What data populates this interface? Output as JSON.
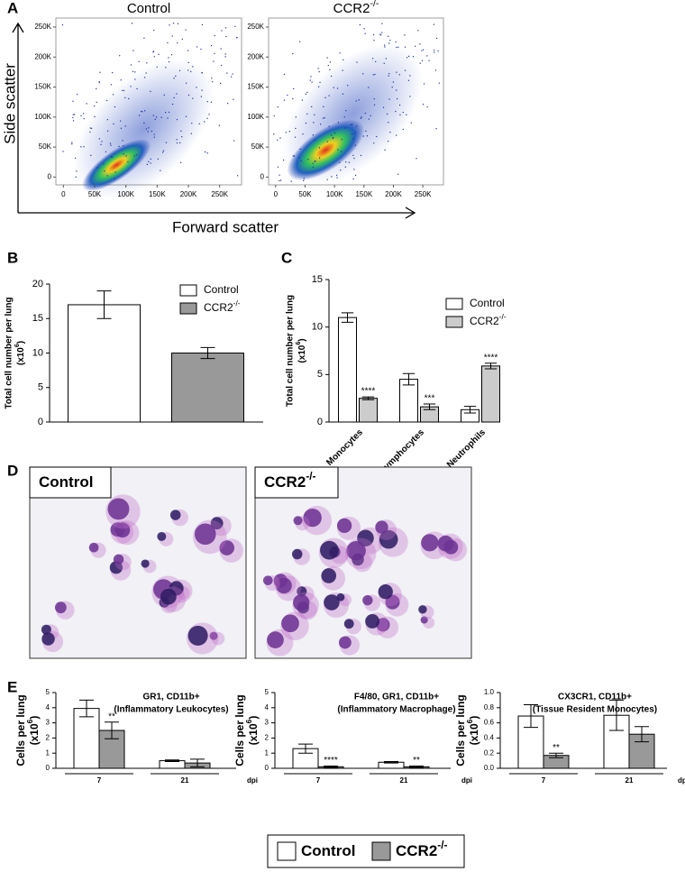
{
  "panel_labels": [
    "A",
    "B",
    "C",
    "D",
    "E"
  ],
  "figure": {
    "y_axis_label": "Side scatter",
    "x_axis_label": "Forward scatter",
    "micrographs": [
      {
        "label": "Control"
      },
      {
        "label": "CCR2",
        "label_sup": "-/-"
      }
    ],
    "legend": [
      {
        "name": "Control"
      },
      {
        "name": "CCR2",
        "sup": "-/-"
      }
    ]
  },
  "chart_data": [
    {
      "type": "density",
      "title": "Control",
      "xlim": [
        -12000,
        285000
      ],
      "ylim": [
        -13000,
        265000
      ],
      "xticks": [
        0,
        {
          "value": 50000,
          "label": "50K"
        },
        {
          "value": 100000,
          "label": "100K"
        },
        {
          "value": 150000,
          "label": "150K"
        },
        {
          "value": 200000,
          "label": "200K"
        },
        {
          "value": 250000,
          "label": "250K"
        }
      ],
      "yticks": [
        0,
        {
          "value": 50000,
          "label": "50K"
        },
        {
          "value": 100000,
          "label": "100K"
        },
        {
          "value": 150000,
          "label": "150K"
        },
        {
          "value": 200000,
          "label": "200K"
        },
        {
          "value": 250000,
          "label": "250K"
        }
      ]
    },
    {
      "type": "density",
      "title": "CCR2",
      "title_sup": "-/-",
      "xlim": [
        -12000,
        285000
      ],
      "ylim": [
        -13000,
        265000
      ],
      "xticks": [
        0,
        {
          "value": 50000,
          "label": "50K"
        },
        {
          "value": 100000,
          "label": "100K"
        },
        {
          "value": 150000,
          "label": "150K"
        },
        {
          "value": 200000,
          "label": "200K"
        },
        {
          "value": 250000,
          "label": "250K"
        }
      ],
      "yticks": [
        0,
        {
          "value": 50000,
          "label": "50K"
        },
        {
          "value": 100000,
          "label": "100K"
        },
        {
          "value": 150000,
          "label": "150K"
        },
        {
          "value": 200000,
          "label": "200K"
        },
        {
          "value": 250000,
          "label": "250K"
        }
      ]
    },
    {
      "type": "bar",
      "ylabel": "Total cell number per lung",
      "ylabel_unit": "(x10",
      "ylabel_exp": "6",
      "ylabel_end": ")",
      "categories": [
        null
      ],
      "ylim": [
        0,
        20
      ],
      "yticks": [
        0,
        5,
        10,
        15,
        20
      ],
      "series": [
        {
          "name": "Control",
          "color": "#ffffff",
          "values": [
            17
          ],
          "errors": [
            2
          ]
        },
        {
          "name": "CCR2",
          "name_sup": "-/-",
          "color": "#999999",
          "values": [
            10
          ],
          "errors": [
            0.8
          ]
        }
      ]
    },
    {
      "type": "bar",
      "ylabel": "Total cell number per lung",
      "ylabel_unit": "(x10",
      "ylabel_exp": "6",
      "ylabel_end": ")",
      "categories": [
        "Monocytes",
        "Lymphocytes",
        "Neutrophils"
      ],
      "ylim": [
        0,
        15
      ],
      "yticks": [
        0,
        5,
        10,
        15
      ],
      "series": [
        {
          "name": "Control",
          "color": "#ffffff",
          "values": [
            11,
            4.5,
            1.3
          ],
          "errors": [
            0.5,
            0.6,
            0.35
          ]
        },
        {
          "name": "CCR2",
          "name_sup": "-/-",
          "color": "#cccccc",
          "values": [
            2.5,
            1.6,
            5.9
          ],
          "errors": [
            0.15,
            0.3,
            0.3
          ],
          "annotations": [
            "****",
            "***",
            "****"
          ]
        }
      ]
    },
    {
      "type": "bar",
      "title": "GR1, CD11b+",
      "subtitle": "(Inflammatory Leukocytes)",
      "ylabel": "Cells per lung",
      "ylabel_unit": "(x10",
      "ylabel_exp": "6",
      "ylabel_end": ")",
      "xlabel": "dpi",
      "categories": [
        "7",
        "21"
      ],
      "ylim": [
        0,
        5
      ],
      "yticks": [
        0,
        1,
        2,
        3,
        4,
        5
      ],
      "series": [
        {
          "name": "Control",
          "color": "#ffffff",
          "values": [
            3.95,
            0.5
          ],
          "errors": [
            0.55,
            0.05
          ]
        },
        {
          "name": "CCR2",
          "name_sup": "-/-",
          "color": "#999999",
          "values": [
            2.5,
            0.35
          ],
          "errors": [
            0.55,
            0.25
          ],
          "annotations": [
            "**",
            null
          ]
        }
      ]
    },
    {
      "type": "bar",
      "title": "F4/80, GR1, CD11b+",
      "subtitle": "(Inflammatory Macrophage)",
      "ylabel": "Cells per lung",
      "ylabel_unit": "(x10",
      "ylabel_exp": "6",
      "ylabel_end": ")",
      "xlabel": "dpi",
      "categories": [
        "7",
        "21"
      ],
      "ylim": [
        0,
        5
      ],
      "yticks": [
        0,
        1,
        2,
        3,
        4,
        5
      ],
      "series": [
        {
          "name": "Control",
          "color": "#ffffff",
          "values": [
            1.3,
            0.4
          ],
          "errors": [
            0.3,
            0.05
          ]
        },
        {
          "name": "CCR2",
          "name_sup": "-/-",
          "color": "#999999",
          "values": [
            0.1,
            0.1
          ],
          "errors": [
            0.05,
            0.05
          ],
          "annotations": [
            "****",
            "**"
          ]
        }
      ]
    },
    {
      "type": "bar",
      "title": "CX3CR1, CD11b+",
      "subtitle": "(Tissue Resident Monocytes)",
      "ylabel": "Cells per lung",
      "ylabel_unit": "(x10",
      "ylabel_exp": "6",
      "ylabel_end": ")",
      "xlabel": "dpi",
      "categories": [
        "7",
        "21"
      ],
      "ylim": [
        0,
        1
      ],
      "yticks": [
        {
          "value": 0,
          "label": "0.0"
        },
        0.2,
        0.4,
        0.6,
        0.8,
        {
          "value": 1,
          "label": "1.0"
        }
      ],
      "series": [
        {
          "name": "Control",
          "color": "#ffffff",
          "values": [
            0.69,
            0.7
          ],
          "errors": [
            0.15,
            0.2
          ]
        },
        {
          "name": "CCR2",
          "name_sup": "-/-",
          "color": "#999999",
          "values": [
            0.17,
            0.45
          ],
          "errors": [
            0.03,
            0.1
          ],
          "annotations": [
            "**",
            null
          ]
        }
      ]
    }
  ]
}
